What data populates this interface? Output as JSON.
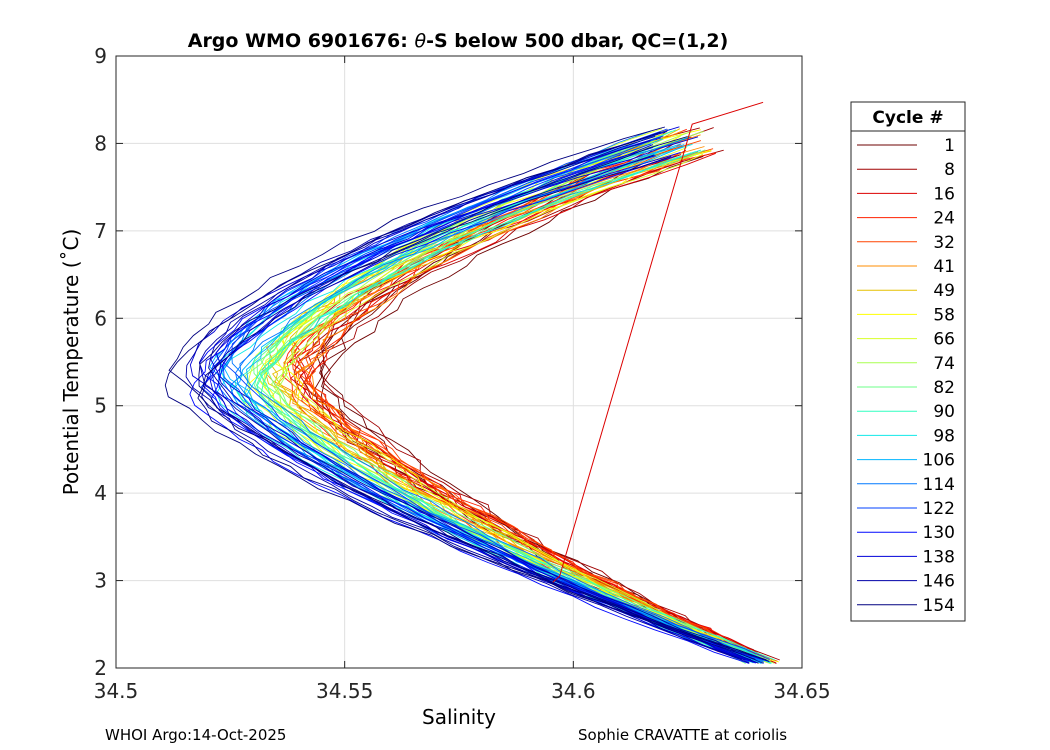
{
  "chart_data": {
    "type": "line",
    "title_prefix": "Argo WMO 6901676: ",
    "title_theta": "θ",
    "title_suffix": "-S below 500 dbar,  QC=(1,2)",
    "xlabel": "Salinity",
    "ylabel": "Potential Temperature (˚C)",
    "xlim": [
      34.5,
      34.65
    ],
    "ylim": [
      2,
      9
    ],
    "xticks": [
      34.5,
      34.55,
      34.6,
      34.65
    ],
    "xtick_labels": [
      "34.5",
      "34.55",
      "34.6",
      "34.65"
    ],
    "yticks": [
      2,
      3,
      4,
      5,
      6,
      7,
      8,
      9
    ],
    "ytick_labels": [
      "2",
      "3",
      "4",
      "5",
      "6",
      "7",
      "8",
      "9"
    ],
    "grid": true,
    "legend": {
      "title": "Cycle #",
      "position": "outside-right",
      "entries": [
        {
          "label": "1",
          "color": "#6e0000"
        },
        {
          "label": "8",
          "color": "#a00000"
        },
        {
          "label": "16",
          "color": "#dc0000"
        },
        {
          "label": "24",
          "color": "#ff2000"
        },
        {
          "label": "32",
          "color": "#ff4400"
        },
        {
          "label": "41",
          "color": "#ff8c00"
        },
        {
          "label": "49",
          "color": "#e6c000"
        },
        {
          "label": "58",
          "color": "#ffff00"
        },
        {
          "label": "66",
          "color": "#d8ff28"
        },
        {
          "label": "74",
          "color": "#a8ff50"
        },
        {
          "label": "82",
          "color": "#6cff8a"
        },
        {
          "label": "90",
          "color": "#30ffc0"
        },
        {
          "label": "98",
          "color": "#10e8e8"
        },
        {
          "label": "106",
          "color": "#00b4ff"
        },
        {
          "label": "114",
          "color": "#0078ff"
        },
        {
          "label": "122",
          "color": "#0040ff"
        },
        {
          "label": "130",
          "color": "#0008ff"
        },
        {
          "label": "138",
          "color": "#0000d8"
        },
        {
          "label": "146",
          "color": "#0000a8"
        },
        {
          "label": "154",
          "color": "#000080"
        }
      ]
    },
    "series_template": {
      "description": "Each cycle profile follows a C-shaped theta-S curve: salinity minimum near theta 5.3, rising to higher salinity at both warm and cold ends.",
      "warm_end": {
        "theta": 8.2,
        "salinity": 34.622
      },
      "min_point": {
        "theta": 5.3,
        "salinity": 34.527
      },
      "cold_end": {
        "theta": 2.05,
        "salinity": 34.641
      },
      "early_cycles_min_salinity_shift": 0.018,
      "late_cycles_min_salinity_shift": -0.012
    },
    "outlier_segment": {
      "cycle_label": "16",
      "points": [
        [
          34.6415,
          8.47
        ],
        [
          34.626,
          8.22
        ],
        [
          34.597,
          3.05
        ],
        [
          34.5955,
          2.98
        ]
      ]
    }
  },
  "footer": {
    "left": "WHOI Argo:14-Oct-2025",
    "right": "Sophie CRAVATTE at coriolis"
  }
}
